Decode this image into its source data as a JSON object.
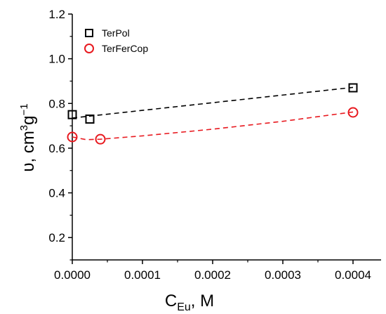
{
  "chart_data": {
    "type": "scatter",
    "xlabel": {
      "main": "C",
      "sub": "Eu",
      "suffix": ", M"
    },
    "ylabel": {
      "main": "υ, cm",
      "sup1": "3",
      "mid": "g",
      "sup2": "−1"
    },
    "xlim": [
      0,
      0.00044
    ],
    "ylim": [
      0.1,
      1.2
    ],
    "xticks": [
      0,
      0.0001,
      0.0002,
      0.0003,
      0.0004
    ],
    "xtick_labels": [
      "0.0000",
      "0.0001",
      "0.0002",
      "0.0003",
      "0.0004"
    ],
    "yticks": [
      0.2,
      0.4,
      0.6,
      0.8,
      1.0,
      1.2
    ],
    "ytick_labels": [
      "0.2",
      "0.4",
      "0.6",
      "0.8",
      "1.0",
      "1.2"
    ],
    "grid": false,
    "legend": "top-left",
    "series": [
      {
        "name": "TerPol",
        "marker": "square",
        "color": "#000000",
        "x": [
          0,
          2.5e-05,
          0.0004
        ],
        "y": [
          0.75,
          0.73,
          0.87
        ],
        "fit": {
          "x": [
            0,
            0.0004
          ],
          "y": [
            0.735,
            0.872
          ],
          "style": "dashed"
        }
      },
      {
        "name": "TerFerCop",
        "marker": "circle",
        "color": "#e8191f",
        "x": [
          0,
          4e-05,
          0.0004
        ],
        "y": [
          0.65,
          0.64,
          0.76
        ],
        "fit": {
          "x": [
            0,
            2e-05,
            4e-05,
            0.0001,
            0.0002,
            0.0003,
            0.0004
          ],
          "y": [
            0.65,
            0.638,
            0.64,
            0.655,
            0.685,
            0.72,
            0.762
          ],
          "style": "dashed"
        }
      }
    ]
  }
}
